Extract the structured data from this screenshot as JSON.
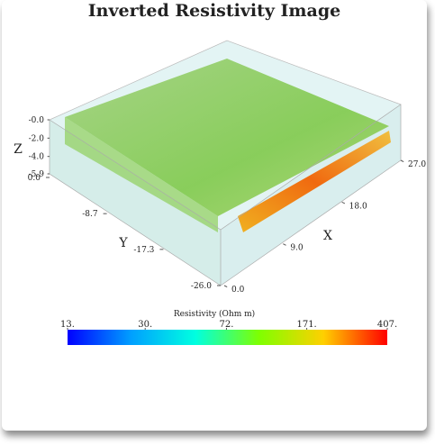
{
  "chart_data": {
    "type": "volume",
    "title": "Inverted Resistivity Image",
    "axes": {
      "x": {
        "label": "X",
        "lim": [
          0,
          27
        ],
        "ticks": [
          {
            "value": 0,
            "label": "0.0"
          },
          {
            "value": 9,
            "label": "9.0"
          },
          {
            "value": 18,
            "label": "18.0"
          },
          {
            "value": 27,
            "label": "27.0"
          }
        ]
      },
      "y": {
        "label": "Y",
        "lim": [
          0,
          -26
        ],
        "ticks": [
          {
            "value": 0,
            "label": "0.0"
          },
          -8.7,
          -17.3,
          {
            "value": -26,
            "label": "-26.0"
          }
        ]
      },
      "z": {
        "label": "Z",
        "lim": [
          0,
          -5.9
        ],
        "ticks": [
          {
            "value": 0,
            "label": "-0.0"
          },
          {
            "value": -2,
            "label": "-2.0"
          },
          {
            "value": -4,
            "label": "-4.0"
          },
          -5.9
        ]
      }
    },
    "colorbar": {
      "label": "Resistivity (Ohm m)",
      "log": true,
      "lim": [
        13,
        407
      ],
      "ticks": [
        {
          "value": 13,
          "label": "13."
        },
        {
          "value": 30,
          "label": "30."
        },
        {
          "value": 72,
          "label": "72."
        },
        {
          "value": 171,
          "label": "171."
        },
        {
          "value": 407,
          "label": "407."
        }
      ],
      "colors": [
        "#0000ff",
        "#00a0ff",
        "#00ffe0",
        "#7fff00",
        "#ffd000",
        "#ff0000"
      ]
    }
  }
}
